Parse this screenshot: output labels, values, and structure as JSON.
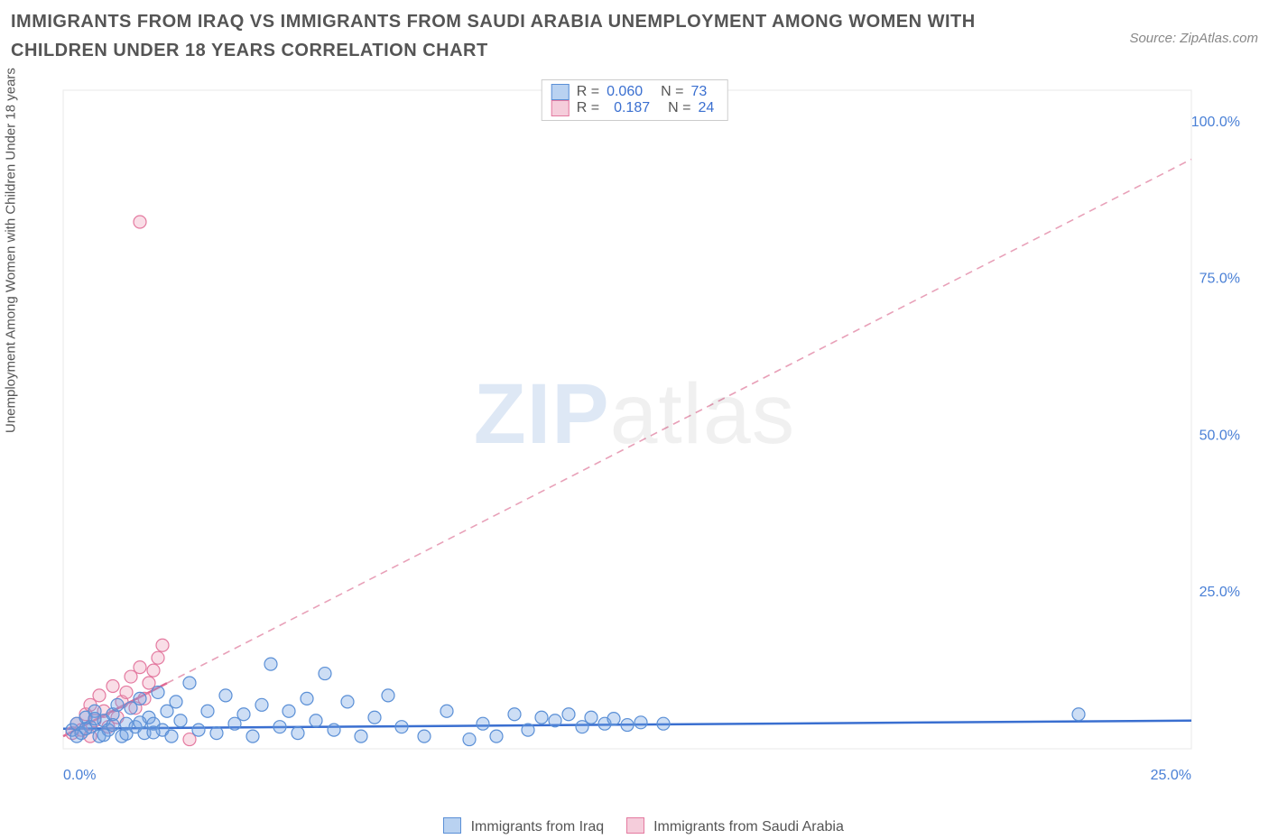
{
  "title": "IMMIGRANTS FROM IRAQ VS IMMIGRANTS FROM SAUDI ARABIA UNEMPLOYMENT AMONG WOMEN WITH CHILDREN UNDER 18 YEARS CORRELATION CHART",
  "source": "Source: ZipAtlas.com",
  "ylabel": "Unemployment Among Women with Children Under 18 years",
  "watermark_a": "ZIP",
  "watermark_b": "atlas",
  "chart": {
    "type": "scatter",
    "background_color": "#ffffff",
    "xlim": [
      0,
      25
    ],
    "ylim": [
      0,
      105
    ],
    "x_ticks": [
      {
        "v": 0,
        "label": "0.0%"
      },
      {
        "v": 25,
        "label": "25.0%"
      }
    ],
    "y_ticks": [
      {
        "v": 25,
        "label": "25.0%"
      },
      {
        "v": 50,
        "label": "50.0%"
      },
      {
        "v": 75,
        "label": "75.0%"
      },
      {
        "v": 100,
        "label": "100.0%"
      }
    ],
    "axis_color": "#e8e8e8",
    "tick_label_color": "#4a80d6",
    "tick_label_fontsize": 16,
    "marker_radius": 7,
    "marker_stroke_width": 1.2,
    "series": [
      {
        "name": "Immigrants from Iraq",
        "fill": "rgba(111,160,225,0.35)",
        "stroke": "#5a8fd6",
        "legend_swatch_fill": "#b9d2f1",
        "legend_swatch_stroke": "#5a8fd6",
        "r_value": "0.060",
        "n_value": "73",
        "stat_color": "#3a6fd0",
        "trend": {
          "x1": 0,
          "y1": 3.2,
          "x2": 25,
          "y2": 4.5,
          "color": "#3a6fd0",
          "width": 2.5,
          "dash": ""
        },
        "points": [
          [
            0.2,
            3.0
          ],
          [
            0.3,
            4.0
          ],
          [
            0.4,
            2.5
          ],
          [
            0.5,
            5.0
          ],
          [
            0.6,
            3.5
          ],
          [
            0.7,
            6.0
          ],
          [
            0.8,
            2.0
          ],
          [
            0.9,
            4.5
          ],
          [
            1.0,
            3.0
          ],
          [
            1.1,
            5.5
          ],
          [
            1.2,
            7.0
          ],
          [
            1.3,
            2.0
          ],
          [
            1.4,
            4.0
          ],
          [
            1.5,
            6.5
          ],
          [
            1.6,
            3.5
          ],
          [
            1.7,
            8.0
          ],
          [
            1.8,
            2.5
          ],
          [
            1.9,
            5.0
          ],
          [
            2.0,
            4.0
          ],
          [
            2.1,
            9.0
          ],
          [
            2.2,
            3.0
          ],
          [
            2.3,
            6.0
          ],
          [
            2.4,
            2.0
          ],
          [
            2.5,
            7.5
          ],
          [
            2.6,
            4.5
          ],
          [
            2.8,
            10.5
          ],
          [
            3.0,
            3.0
          ],
          [
            3.2,
            6.0
          ],
          [
            3.4,
            2.5
          ],
          [
            3.6,
            8.5
          ],
          [
            3.8,
            4.0
          ],
          [
            4.0,
            5.5
          ],
          [
            4.2,
            2.0
          ],
          [
            4.4,
            7.0
          ],
          [
            4.6,
            13.5
          ],
          [
            4.8,
            3.5
          ],
          [
            5.0,
            6.0
          ],
          [
            5.2,
            2.5
          ],
          [
            5.4,
            8.0
          ],
          [
            5.6,
            4.5
          ],
          [
            5.8,
            12.0
          ],
          [
            6.0,
            3.0
          ],
          [
            6.3,
            7.5
          ],
          [
            6.6,
            2.0
          ],
          [
            6.9,
            5.0
          ],
          [
            7.2,
            8.5
          ],
          [
            7.5,
            3.5
          ],
          [
            8.0,
            2.0
          ],
          [
            8.5,
            6.0
          ],
          [
            9.0,
            1.5
          ],
          [
            9.3,
            4.0
          ],
          [
            9.6,
            2.0
          ],
          [
            10.0,
            5.5
          ],
          [
            10.3,
            3.0
          ],
          [
            10.6,
            5.0
          ],
          [
            10.9,
            4.5
          ],
          [
            11.2,
            5.5
          ],
          [
            11.5,
            3.5
          ],
          [
            11.7,
            5.0
          ],
          [
            12.0,
            4.0
          ],
          [
            12.2,
            4.8
          ],
          [
            12.5,
            3.8
          ],
          [
            12.8,
            4.2
          ],
          [
            13.3,
            4.0
          ],
          [
            22.5,
            5.5
          ],
          [
            0.3,
            2.0
          ],
          [
            0.5,
            3.2
          ],
          [
            0.7,
            4.8
          ],
          [
            0.9,
            2.2
          ],
          [
            1.1,
            3.8
          ],
          [
            1.4,
            2.4
          ],
          [
            1.7,
            4.2
          ],
          [
            2.0,
            2.6
          ]
        ]
      },
      {
        "name": "Immigrants from Saudi Arabia",
        "fill": "rgba(238,160,185,0.35)",
        "stroke": "#e47aa0",
        "legend_swatch_fill": "#f5cddb",
        "legend_swatch_stroke": "#e47aa0",
        "r_value": "0.187",
        "n_value": "24",
        "stat_color": "#3a6fd0",
        "trend": {
          "x1": 0,
          "y1": 2.0,
          "x2": 25,
          "y2": 94.0,
          "color": "#e8a0b8",
          "width": 1.6,
          "dash": "8 6"
        },
        "trend_solid_until_x": 2.3,
        "points": [
          [
            0.2,
            2.5
          ],
          [
            0.3,
            4.0
          ],
          [
            0.4,
            3.0
          ],
          [
            0.5,
            5.5
          ],
          [
            0.6,
            7.0
          ],
          [
            0.7,
            4.5
          ],
          [
            0.8,
            8.5
          ],
          [
            0.9,
            6.0
          ],
          [
            1.0,
            3.5
          ],
          [
            1.1,
            10.0
          ],
          [
            1.2,
            5.0
          ],
          [
            1.3,
            7.5
          ],
          [
            1.4,
            9.0
          ],
          [
            1.5,
            11.5
          ],
          [
            1.6,
            6.5
          ],
          [
            1.7,
            13.0
          ],
          [
            1.8,
            8.0
          ],
          [
            1.9,
            10.5
          ],
          [
            2.0,
            12.5
          ],
          [
            2.1,
            14.5
          ],
          [
            2.2,
            16.5
          ],
          [
            0.6,
            2.0
          ],
          [
            2.8,
            1.5
          ],
          [
            1.7,
            84.0
          ]
        ]
      }
    ]
  },
  "legend_bottom": {
    "a": "Immigrants from Iraq",
    "b": "Immigrants from Saudi Arabia"
  }
}
